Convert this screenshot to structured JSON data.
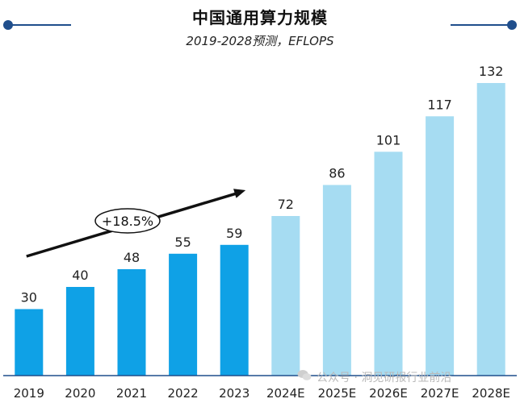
{
  "title": "中国通用算力规模",
  "subtitle": "2019-2028预测，EFLOPS",
  "annotation": "+18.5%",
  "watermark": "公众号 · 洞见研报行业前沿",
  "colors": {
    "actual": "#0fa1e6",
    "forecast": "#a6dcf2",
    "accent": "#1f4e8c"
  },
  "chart_data": {
    "type": "bar",
    "title": "中国通用算力规模",
    "subtitle": "2019-2028预测，EFLOPS",
    "xlabel": "",
    "ylabel": "",
    "categories": [
      "2019",
      "2020",
      "2021",
      "2022",
      "2023",
      "2024E",
      "2025E",
      "2026E",
      "2027E",
      "2028E"
    ],
    "values": [
      30,
      40,
      48,
      55,
      59,
      72,
      86,
      101,
      117,
      132
    ],
    "forecast_start_index": 5,
    "ylim": [
      0,
      135
    ],
    "grid": false,
    "legend": "none",
    "annotations": [
      {
        "text": "+18.5%",
        "type": "trend-arrow",
        "from_category": "2019",
        "to_category": "2023"
      }
    ]
  }
}
